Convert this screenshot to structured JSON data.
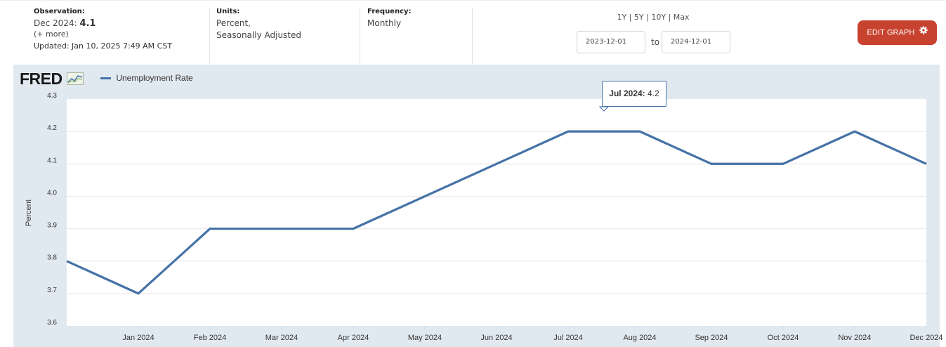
{
  "header": {
    "observation": {
      "label": "Observation:",
      "period": "Dec 2024:",
      "value": "4.1",
      "more": "(+ more)",
      "updated": "Updated: Jan 10, 2025 7:49 AM CST"
    },
    "units": {
      "label": "Units:",
      "line1": "Percent,",
      "line2": "Seasonally Adjusted"
    },
    "frequency": {
      "label": "Frequency:",
      "value": "Monthly"
    },
    "ranges": [
      "1Y",
      "5Y",
      "10Y",
      "Max"
    ],
    "date_from": "2023-12-01",
    "to_label": "to",
    "date_to": "2024-12-01",
    "edit_button": "EDIT GRAPH"
  },
  "logo": "FRED",
  "tooltip": {
    "date": "Jul 2024:",
    "value": "4.2"
  },
  "colors": {
    "series": "#4572a7",
    "button": "#c8432f",
    "plot_background": "#e1e9f0"
  },
  "chart_data": {
    "type": "line",
    "ylabel": "Percent",
    "ylim": [
      3.6,
      4.3
    ],
    "yticks": [
      "4.3",
      "4.2",
      "4.1",
      "4.0",
      "3.9",
      "3.8",
      "3.7",
      "3.6"
    ],
    "xticks": [
      "Jan 2024",
      "Feb 2024",
      "Mar 2024",
      "Apr 2024",
      "May 2024",
      "Jun 2024",
      "Jul 2024",
      "Aug 2024",
      "Sep 2024",
      "Oct 2024",
      "Nov 2024",
      "Dec 2024"
    ],
    "series": [
      {
        "name": "Unemployment Rate",
        "x": [
          "Dec 2023",
          "Jan 2024",
          "Feb 2024",
          "Mar 2024",
          "Apr 2024",
          "May 2024",
          "Jun 2024",
          "Jul 2024",
          "Aug 2024",
          "Sep 2024",
          "Oct 2024",
          "Nov 2024",
          "Dec 2024"
        ],
        "values": [
          3.8,
          3.7,
          3.9,
          3.9,
          3.9,
          4.0,
          4.1,
          4.2,
          4.2,
          4.1,
          4.1,
          4.2,
          4.1
        ]
      }
    ],
    "grid": true,
    "legend": "top-left"
  }
}
